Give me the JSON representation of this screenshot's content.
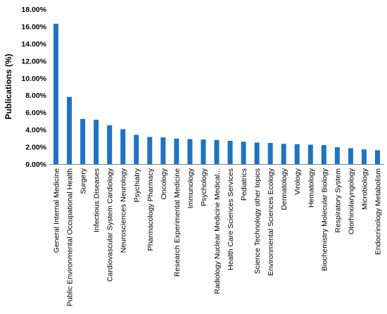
{
  "chart_data": {
    "type": "bar",
    "title": "",
    "xlabel": "",
    "ylabel": "Publications (%)",
    "ylim": [
      0,
      18
    ],
    "yticks": [
      "0.00%",
      "2.00%",
      "4.00%",
      "6.00%",
      "8.00%",
      "10.00%",
      "12.00%",
      "14.00%",
      "16.00%",
      "18.00%"
    ],
    "grid": false,
    "legend": "none",
    "bar_color": "#1f73c2",
    "categories": [
      "General Internal Medicine",
      "Public Environmental Occupational Health",
      "Surgery",
      "Infectious Diseases",
      "Cardiovascular System Cardiology",
      "Neurosciences Neurology",
      "Psychiatry",
      "Pharmacology Pharmacy",
      "Oncology",
      "Research Experimental Medicine",
      "Immunology",
      "Psychology",
      "Radiology Nuclear Medicine Medical...",
      "Health Care Sciences Services",
      "Pediatrics",
      "Science Technology other topics",
      "Environmental Sciences Ecology",
      "Dermatology",
      "Virology",
      "Hematology",
      "Biochemistry Molecular Biology",
      "Respiratory System",
      "Otorhinolaryngology",
      "Microbiology",
      "Endocrinology Metabolism"
    ],
    "values": [
      16.3,
      7.8,
      5.25,
      5.15,
      4.5,
      4.05,
      3.4,
      3.15,
      3.1,
      2.95,
      2.9,
      2.85,
      2.8,
      2.7,
      2.6,
      2.5,
      2.45,
      2.35,
      2.3,
      2.25,
      2.2,
      1.95,
      1.85,
      1.7,
      1.6
    ]
  }
}
